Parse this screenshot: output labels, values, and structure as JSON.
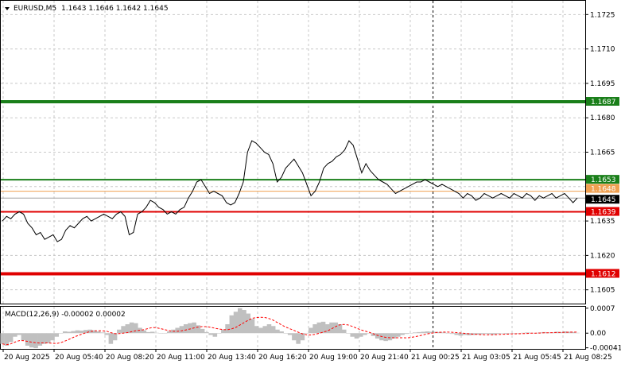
{
  "header": {
    "menu_icon": "triangle-down-icon",
    "symbol_info": "EURUSD,M5",
    "ohlc": "1.1643 1.1646 1.1642 1.1645"
  },
  "macd_header": "MACD(12,26,9) -0.00002 0.00002",
  "colors": {
    "background": "#ffffff",
    "grid": "#c8c8c8",
    "price_line": "#000000",
    "resistance": "#1a7f1a",
    "support": "#e00000",
    "bid_line": "#a0a0a0",
    "ask_line": "#f0a050",
    "histogram": "#c0c0c0",
    "signal": "#ff0000"
  },
  "chart_data": {
    "type": "line",
    "title": "EURUSD,M5",
    "price_axis": {
      "ticks": [
        "1.1725",
        "1.1710",
        "1.1695",
        "1.1680",
        "1.1665",
        "1.1650",
        "1.1635",
        "1.1620",
        "1.1605"
      ],
      "ylim": [
        1.1599,
        1.1731
      ]
    },
    "time_axis": {
      "ticks": [
        "20 Aug 2025",
        "20 Aug 05:40",
        "20 Aug 08:20",
        "20 Aug 11:00",
        "20 Aug 13:40",
        "20 Aug 16:20",
        "20 Aug 19:00",
        "20 Aug 21:40",
        "21 Aug 00:25",
        "21 Aug 03:05",
        "21 Aug 05:45",
        "21 Aug 08:25"
      ]
    },
    "levels": [
      {
        "name": "resistance-strong",
        "value": 1.1687,
        "label": "1.1687",
        "color": "#1a7f1a",
        "weight": "thick"
      },
      {
        "name": "resistance",
        "value": 1.1653,
        "label": "1.1653",
        "color": "#1a7f1a",
        "weight": "thin"
      },
      {
        "name": "ask",
        "value": 1.1648,
        "label": "1.1648",
        "color": "#f0a050",
        "weight": "hair"
      },
      {
        "name": "bid",
        "value": 1.1645,
        "label": "1.1645",
        "color": "#a0a0a0",
        "weight": "hair"
      },
      {
        "name": "support",
        "value": 1.1639,
        "label": "1.1639",
        "color": "#e00000",
        "weight": "thin"
      },
      {
        "name": "support-strong",
        "value": 1.1612,
        "label": "1.1612",
        "color": "#e00000",
        "weight": "thick"
      }
    ],
    "series": [
      {
        "values": [
          1.1635,
          1.1637,
          1.1636,
          1.1638,
          1.1639,
          1.1638,
          1.1634,
          1.1632,
          1.1629,
          1.163,
          1.1627,
          1.1628,
          1.1629,
          1.1626,
          1.1627,
          1.1631,
          1.1633,
          1.1632,
          1.1634,
          1.1636,
          1.1637,
          1.1635,
          1.1636,
          1.1637,
          1.1638,
          1.1637,
          1.1636,
          1.1638,
          1.1639,
          1.1637,
          1.1629,
          1.163,
          1.1638,
          1.1639,
          1.1641,
          1.1644,
          1.1643,
          1.1641,
          1.164,
          1.1638,
          1.1639,
          1.1638,
          1.164,
          1.1641,
          1.1645,
          1.1648,
          1.1652,
          1.1653,
          1.165,
          1.1647,
          1.1648,
          1.1647,
          1.1646,
          1.1643,
          1.1642,
          1.1643,
          1.1647,
          1.1652,
          1.1665,
          1.167,
          1.1669,
          1.1667,
          1.1665,
          1.1664,
          1.166,
          1.1652,
          1.1654,
          1.1658,
          1.166,
          1.1662,
          1.1659,
          1.1656,
          1.1651,
          1.1646,
          1.1648,
          1.1652,
          1.1658,
          1.166,
          1.1661,
          1.1663,
          1.1664,
          1.1666,
          1.167,
          1.1668,
          1.1662,
          1.1656,
          1.166,
          1.1657,
          1.1655,
          1.1653,
          1.1652,
          1.1651,
          1.1649,
          1.1647,
          1.1648,
          1.1649,
          1.165,
          1.1651,
          1.1652,
          1.1652,
          1.1653,
          1.1652,
          1.1651,
          1.165,
          1.1651,
          1.165,
          1.1649,
          1.1648,
          1.1647,
          1.1645,
          1.1647,
          1.1646,
          1.1644,
          1.1645,
          1.1647,
          1.1646,
          1.1645,
          1.1646,
          1.1647,
          1.1646,
          1.1645,
          1.1647,
          1.1646,
          1.1645,
          1.1647,
          1.1646,
          1.1644,
          1.1646,
          1.1645,
          1.1646,
          1.1647,
          1.1645,
          1.1646,
          1.1647,
          1.1645,
          1.1643,
          1.1645
        ]
      }
    ],
    "markers": [
      {
        "name": "session-separator",
        "x_index": 100,
        "style": "dashed"
      }
    ],
    "macd": {
      "title": "MACD(12,26,9)",
      "main_value": "-0.00002",
      "signal_value": "0.00002",
      "ticks": [
        "0.0007",
        "0.00",
        "-0.00041"
      ],
      "ylim": [
        -0.00044,
        0.00074
      ],
      "histogram": [
        -0.0003,
        -0.00035,
        -0.00025,
        -0.0001,
        -5e-05,
        -0.0002,
        -0.00035,
        -0.0004,
        -0.00042,
        -0.00035,
        -0.0003,
        -0.00028,
        -0.0002,
        -0.0001,
        0.0,
        5e-05,
        4e-05,
        6e-05,
        8e-05,
        7e-05,
        9e-05,
        0.0001,
        8e-05,
        5e-05,
        2e-05,
        -5e-05,
        -0.0003,
        -0.0002,
        0.0001,
        0.0002,
        0.00025,
        0.0003,
        0.00028,
        0.00015,
        8e-05,
        3e-05,
        4e-05,
        1e-05,
        0.0,
        0.0,
        5e-05,
        0.0001,
        0.00015,
        0.0002,
        0.00025,
        0.00028,
        0.0003,
        0.00022,
        0.00012,
        3e-05,
        -5e-05,
        -0.0001,
        0.0,
        0.0001,
        0.00025,
        0.0005,
        0.0006,
        0.0007,
        0.00065,
        0.00055,
        0.0004,
        0.0002,
        0.00015,
        0.0002,
        0.00025,
        0.0002,
        0.0001,
        5e-05,
        0.0,
        -5e-05,
        -0.0002,
        -0.0003,
        -0.0002,
        0.0,
        0.00015,
        0.00025,
        0.0003,
        0.00032,
        0.00025,
        0.0003,
        0.0003,
        0.00025,
        0.0001,
        0.0,
        -0.0001,
        -0.00015,
        -0.0001,
        -5e-05,
        0.0,
        -8e-05,
        -0.00015,
        -0.0002,
        -0.00022,
        -0.0002,
        -0.00015,
        -0.0001,
        -5e-05,
        -2e-05,
        0.0,
        2e-05,
        3e-05,
        4e-05,
        5e-05,
        4e-05,
        4e-05,
        3e-05,
        2e-05,
        0.0,
        -2e-05,
        -5e-05,
        -7e-05,
        -5e-05,
        -6e-05,
        -5e-05,
        -4e-05,
        -3e-05,
        -2e-05,
        -3e-05,
        -4e-05,
        -2e-05,
        -1e-05,
        -2e-05,
        -1e-05,
        0.0,
        0.0,
        1e-05,
        2e-05,
        1e-05,
        0.0,
        2e-05,
        3e-05,
        2e-05,
        2e-05,
        4e-05,
        3e-05,
        5e-05,
        4e-05,
        3e-05,
        1e-05
      ]
    }
  }
}
